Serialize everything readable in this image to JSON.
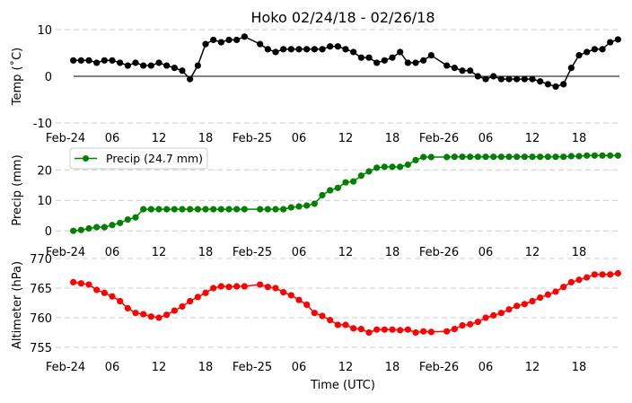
{
  "title": "Hoko 02/24/18 - 02/26/18",
  "xlabel": "Time (UTC)",
  "x_tick_labels": [
    "Feb-24",
    "06",
    "12",
    "18",
    "Feb-25",
    "06",
    "12",
    "18",
    "Feb-26",
    "06",
    "12",
    "18"
  ],
  "x_ticks": [
    "2018-02-24T00:00",
    "2018-02-24T06:00",
    "2018-02-24T12:00",
    "2018-02-24T18:00",
    "2018-02-25T00:00",
    "2018-02-25T06:00",
    "2018-02-25T12:00",
    "2018-02-25T18:00",
    "2018-02-26T00:00",
    "2018-02-26T06:00",
    "2018-02-26T12:00",
    "2018-02-26T18:00"
  ],
  "chart_data": [
    {
      "type": "line",
      "ylabel": "Temp ($^\\circ$C)",
      "ylabel_display": "Temp (˚C)",
      "ylim": [
        -10,
        10
      ],
      "yticks": [
        10,
        0,
        -10
      ],
      "grid": true,
      "zero_line": true,
      "color": "#000000",
      "x_hours_from": "2018-02-24T00:00",
      "x": [
        1,
        2,
        3,
        4,
        5,
        6,
        7,
        8,
        9,
        10,
        11,
        12,
        13,
        14,
        15,
        16,
        17,
        18,
        19,
        20,
        21,
        22,
        23,
        25,
        26,
        27,
        28,
        29,
        30,
        31,
        32,
        33,
        34,
        35,
        36,
        37,
        38,
        39,
        40,
        41,
        42,
        43,
        44,
        45,
        46,
        47,
        49,
        50,
        51,
        52,
        53,
        54,
        55,
        56,
        57,
        58,
        59,
        60,
        61,
        62,
        63,
        64,
        65,
        66,
        67,
        68,
        69,
        70,
        71
      ],
      "values": [
        3.4,
        3.4,
        3.4,
        2.9,
        3.4,
        3.4,
        2.9,
        2.3,
        2.9,
        2.3,
        2.3,
        2.9,
        2.3,
        1.8,
        1.2,
        -0.6,
        2.3,
        6.9,
        7.8,
        7.3,
        7.8,
        7.8,
        8.5,
        6.9,
        5.8,
        5.2,
        5.8,
        5.8,
        5.8,
        5.8,
        5.8,
        5.8,
        6.4,
        6.4,
        5.8,
        5.2,
        4.0,
        4.0,
        2.9,
        3.4,
        4.0,
        5.2,
        2.9,
        2.9,
        3.4,
        4.5,
        2.3,
        1.8,
        1.2,
        1.2,
        0,
        -0.6,
        0,
        -0.6,
        -0.6,
        -0.6,
        -0.6,
        -0.6,
        -1.1,
        -1.7,
        -2.2,
        -1.7,
        1.8,
        4.5,
        5.2,
        5.8,
        5.8,
        7.3,
        7.9
      ]
    },
    {
      "type": "line",
      "ylabel": "Precip (mm)",
      "ylim": [
        -1,
        27
      ],
      "yticks": [
        20,
        10,
        0
      ],
      "grid": true,
      "color": "#008000",
      "legend": {
        "position": "top-left",
        "entries": [
          {
            "name": "Precip (24.7 mm)"
          }
        ]
      },
      "x": [
        1,
        2,
        3,
        4,
        5,
        6,
        7,
        8,
        9,
        10,
        11,
        12,
        13,
        14,
        15,
        16,
        17,
        18,
        19,
        20,
        21,
        22,
        23,
        25,
        26,
        27,
        28,
        29,
        30,
        31,
        32,
        33,
        34,
        35,
        36,
        37,
        38,
        39,
        40,
        41,
        42,
        43,
        44,
        45,
        46,
        47,
        49,
        50,
        51,
        52,
        53,
        54,
        55,
        56,
        57,
        58,
        59,
        60,
        61,
        62,
        63,
        64,
        65,
        66,
        67,
        68,
        69,
        70,
        71
      ],
      "values": [
        0,
        0.3,
        0.8,
        1.2,
        1.2,
        1.9,
        2.6,
        3.7,
        4.4,
        7.1,
        7.1,
        7.1,
        7.1,
        7.1,
        7.1,
        7.1,
        7.1,
        7.1,
        7.1,
        7.1,
        7.1,
        7.1,
        7.1,
        7.1,
        7.1,
        7.1,
        7.1,
        7.7,
        8.0,
        8.3,
        8.9,
        11.7,
        13.3,
        14.1,
        15.9,
        16.2,
        18.1,
        19.5,
        20.7,
        21.0,
        21.0,
        21.0,
        21.7,
        23.2,
        24.2,
        24.2,
        24.2,
        24.3,
        24.3,
        24.3,
        24.3,
        24.3,
        24.3,
        24.3,
        24.3,
        24.3,
        24.3,
        24.3,
        24.3,
        24.3,
        24.3,
        24.3,
        24.5,
        24.5,
        24.7,
        24.7,
        24.7,
        24.7,
        24.7
      ]
    },
    {
      "type": "line",
      "ylabel": "Altimeter (hPa)",
      "ylim": [
        754,
        770
      ],
      "yticks": [
        770,
        765,
        760,
        755
      ],
      "grid": true,
      "color": "#ff0000",
      "x": [
        1,
        2,
        3,
        4,
        5,
        6,
        7,
        8,
        9,
        10,
        11,
        12,
        13,
        14,
        15,
        16,
        17,
        18,
        19,
        20,
        21,
        22,
        23,
        25,
        26,
        27,
        28,
        29,
        30,
        31,
        32,
        33,
        34,
        35,
        36,
        37,
        38,
        39,
        40,
        41,
        42,
        43,
        44,
        45,
        46,
        47,
        49,
        50,
        51,
        52,
        53,
        54,
        55,
        56,
        57,
        58,
        59,
        60,
        61,
        62,
        63,
        64,
        65,
        66,
        67,
        68,
        69,
        70,
        71
      ],
      "values": [
        766.0,
        765.8,
        765.6,
        764.7,
        764.2,
        763.6,
        762.8,
        761.6,
        760.8,
        760.6,
        760.2,
        760.0,
        760.5,
        761.2,
        761.9,
        762.8,
        763.5,
        764.2,
        765.0,
        765.3,
        765.2,
        765.3,
        765.3,
        765.6,
        765.2,
        765.0,
        764.3,
        763.8,
        763.0,
        762.2,
        760.8,
        760.3,
        759.6,
        758.8,
        758.8,
        758.2,
        758.1,
        757.5,
        758.0,
        758.0,
        758.0,
        757.9,
        758.0,
        757.5,
        757.7,
        757.6,
        757.7,
        758.1,
        758.7,
        758.9,
        759.3,
        760.0,
        760.4,
        760.8,
        761.4,
        762.0,
        762.3,
        762.8,
        763.4,
        763.9,
        764.4,
        765.2,
        766.0,
        766.4,
        766.8,
        767.3,
        767.3,
        767.3,
        767.5
      ]
    }
  ]
}
